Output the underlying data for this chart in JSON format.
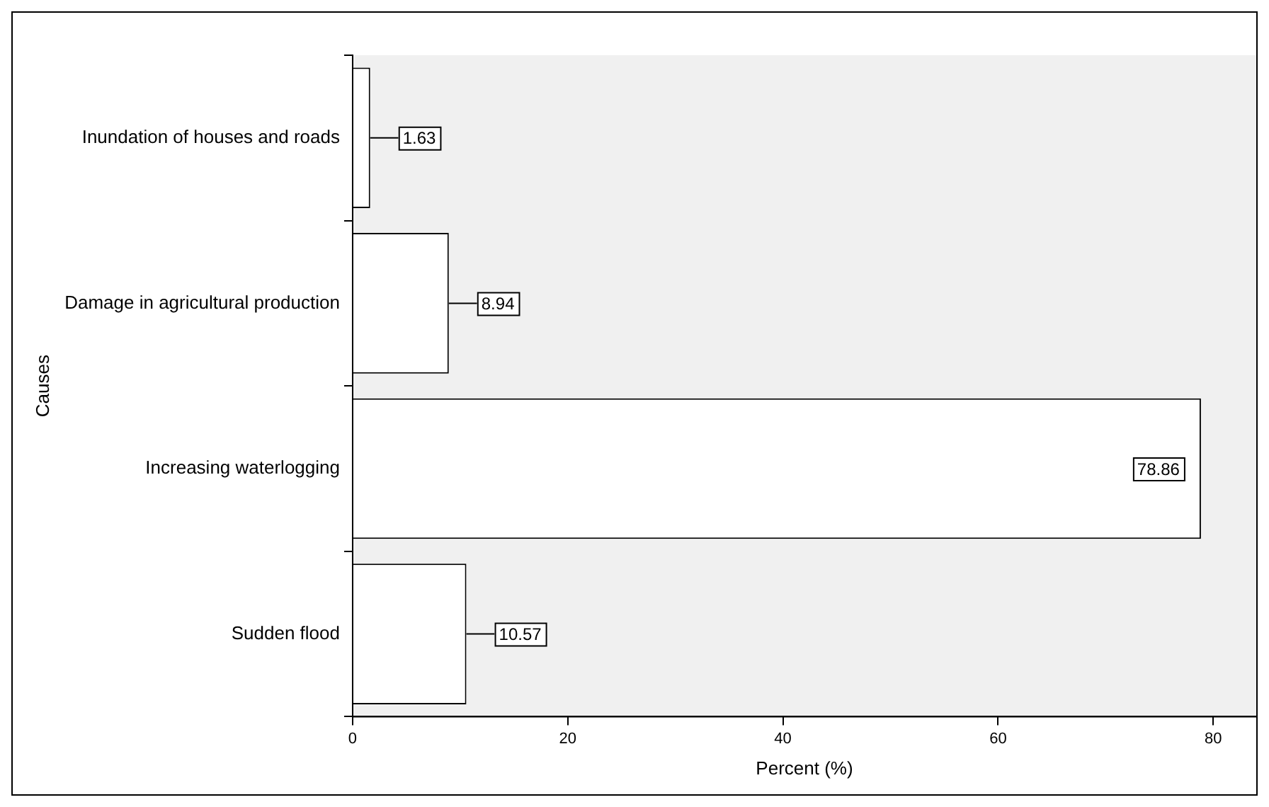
{
  "chart_data": {
    "type": "bar",
    "orientation": "horizontal",
    "xlabel": "Percent (%)",
    "ylabel": "Causes",
    "categories": [
      "Inundation of houses and roads",
      "Damage in agricultural production",
      "Increasing waterlogging",
      "Sudden flood"
    ],
    "values": [
      1.63,
      8.94,
      78.86,
      10.57
    ],
    "color": "#ffffff",
    "xlim": [
      0,
      84
    ],
    "xticks": [
      0,
      20,
      40,
      60,
      80
    ],
    "data_labels": true
  }
}
